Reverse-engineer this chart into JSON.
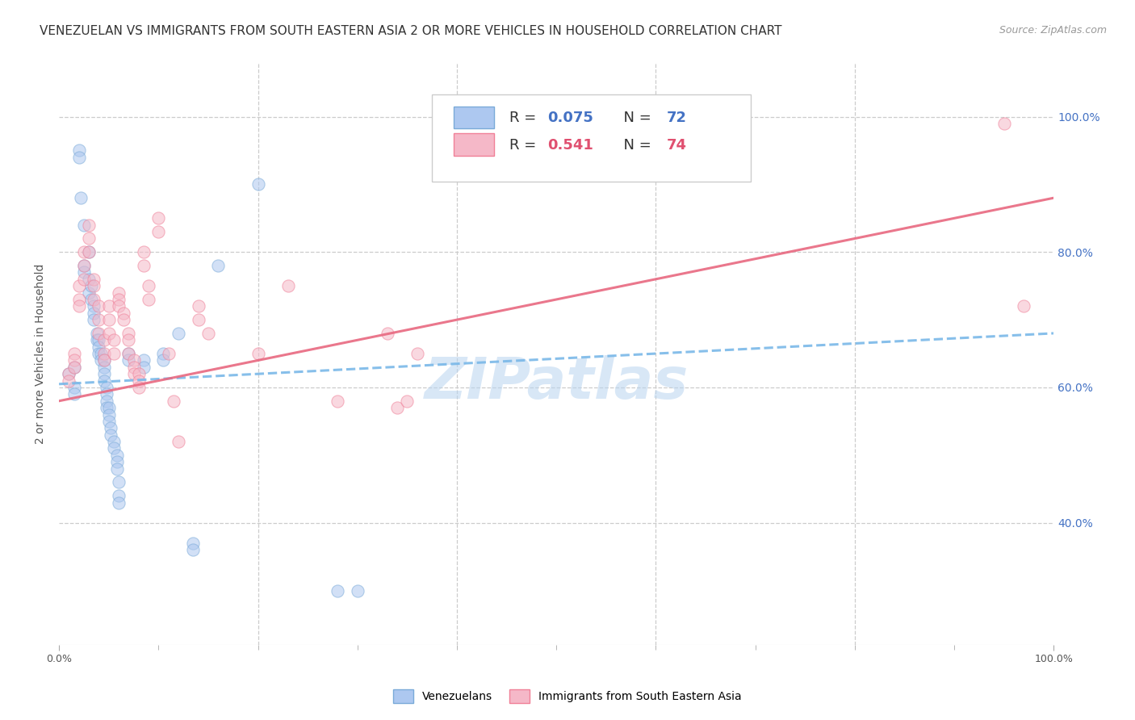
{
  "title": "VENEZUELAN VS IMMIGRANTS FROM SOUTH EASTERN ASIA 2 OR MORE VEHICLES IN HOUSEHOLD CORRELATION CHART",
  "source": "Source: ZipAtlas.com",
  "ylabel": "2 or more Vehicles in Household",
  "bottom_legend": [
    "Venezuelans",
    "Immigrants from South Eastern Asia"
  ],
  "blue_scatter": [
    [
      1.0,
      62
    ],
    [
      1.5,
      60
    ],
    [
      1.5,
      59
    ],
    [
      1.5,
      63
    ],
    [
      2.0,
      95
    ],
    [
      2.0,
      94
    ],
    [
      2.2,
      88
    ],
    [
      2.5,
      84
    ],
    [
      2.5,
      78
    ],
    [
      2.5,
      77
    ],
    [
      3.0,
      80
    ],
    [
      3.0,
      76
    ],
    [
      3.0,
      74
    ],
    [
      3.2,
      75
    ],
    [
      3.2,
      73
    ],
    [
      3.5,
      72
    ],
    [
      3.5,
      71
    ],
    [
      3.5,
      70
    ],
    [
      3.8,
      68
    ],
    [
      3.8,
      67
    ],
    [
      4.0,
      67
    ],
    [
      4.0,
      66
    ],
    [
      4.0,
      65
    ],
    [
      4.2,
      65
    ],
    [
      4.2,
      64
    ],
    [
      4.5,
      64
    ],
    [
      4.5,
      63
    ],
    [
      4.5,
      62
    ],
    [
      4.5,
      61
    ],
    [
      4.8,
      60
    ],
    [
      4.8,
      59
    ],
    [
      4.8,
      58
    ],
    [
      4.8,
      57
    ],
    [
      5.0,
      57
    ],
    [
      5.0,
      56
    ],
    [
      5.0,
      55
    ],
    [
      5.2,
      54
    ],
    [
      5.2,
      53
    ],
    [
      5.5,
      52
    ],
    [
      5.5,
      51
    ],
    [
      5.8,
      50
    ],
    [
      5.8,
      49
    ],
    [
      5.8,
      48
    ],
    [
      6.0,
      46
    ],
    [
      6.0,
      44
    ],
    [
      6.0,
      43
    ],
    [
      7.0,
      65
    ],
    [
      7.0,
      64
    ],
    [
      8.5,
      64
    ],
    [
      8.5,
      63
    ],
    [
      10.5,
      65
    ],
    [
      10.5,
      64
    ],
    [
      12.0,
      68
    ],
    [
      13.5,
      37
    ],
    [
      13.5,
      36
    ],
    [
      16.0,
      78
    ],
    [
      20.0,
      90
    ],
    [
      28.0,
      30
    ],
    [
      30.0,
      30
    ]
  ],
  "pink_scatter": [
    [
      1.0,
      62
    ],
    [
      1.0,
      61
    ],
    [
      1.5,
      65
    ],
    [
      1.5,
      64
    ],
    [
      1.5,
      63
    ],
    [
      2.0,
      75
    ],
    [
      2.0,
      73
    ],
    [
      2.0,
      72
    ],
    [
      2.5,
      80
    ],
    [
      2.5,
      78
    ],
    [
      2.5,
      76
    ],
    [
      3.0,
      84
    ],
    [
      3.0,
      82
    ],
    [
      3.0,
      80
    ],
    [
      3.5,
      76
    ],
    [
      3.5,
      75
    ],
    [
      3.5,
      73
    ],
    [
      4.0,
      72
    ],
    [
      4.0,
      70
    ],
    [
      4.0,
      68
    ],
    [
      4.5,
      67
    ],
    [
      4.5,
      65
    ],
    [
      4.5,
      64
    ],
    [
      5.0,
      72
    ],
    [
      5.0,
      70
    ],
    [
      5.0,
      68
    ],
    [
      5.5,
      67
    ],
    [
      5.5,
      65
    ],
    [
      6.0,
      74
    ],
    [
      6.0,
      73
    ],
    [
      6.0,
      72
    ],
    [
      6.5,
      71
    ],
    [
      6.5,
      70
    ],
    [
      7.0,
      68
    ],
    [
      7.0,
      67
    ],
    [
      7.0,
      65
    ],
    [
      7.5,
      64
    ],
    [
      7.5,
      63
    ],
    [
      7.5,
      62
    ],
    [
      8.0,
      62
    ],
    [
      8.0,
      61
    ],
    [
      8.0,
      60
    ],
    [
      8.5,
      80
    ],
    [
      8.5,
      78
    ],
    [
      9.0,
      75
    ],
    [
      9.0,
      73
    ],
    [
      10.0,
      85
    ],
    [
      10.0,
      83
    ],
    [
      11.0,
      65
    ],
    [
      11.5,
      58
    ],
    [
      14.0,
      72
    ],
    [
      14.0,
      70
    ],
    [
      15.0,
      68
    ],
    [
      20.0,
      65
    ],
    [
      23.0,
      75
    ],
    [
      28.0,
      58
    ],
    [
      33.0,
      68
    ],
    [
      34.0,
      57
    ],
    [
      35.0,
      58
    ],
    [
      36.0,
      65
    ],
    [
      12.0,
      52
    ],
    [
      95.0,
      99
    ],
    [
      97.0,
      72
    ]
  ],
  "scatter_size": 120,
  "scatter_alpha": 0.55,
  "blue_dot_face": "#adc8f0",
  "blue_dot_edge": "#7aaad8",
  "pink_dot_face": "#f5b8c8",
  "pink_dot_edge": "#f08098",
  "line_blue_color": "#7ab8e8",
  "line_pink_color": "#e86880",
  "background": "#ffffff",
  "grid_color": "#cccccc",
  "watermark": "ZIPatlas",
  "watermark_color": "#b8d4f0",
  "title_fontsize": 11,
  "source_fontsize": 9,
  "axis_label_fontsize": 10,
  "tick_fontsize": 9,
  "right_tick_color": "#4472c4",
  "blue_legend_R": "0.075",
  "blue_legend_N": "72",
  "pink_legend_R": "0.541",
  "pink_legend_N": "74",
  "legend_R_color": "#4472c4",
  "pink_R_color": "#e05070",
  "xlim": [
    0,
    100
  ],
  "ylim": [
    22,
    108
  ],
  "x_tick_vals": [
    0,
    100
  ],
  "x_tick_labels": [
    "0.0%",
    "100.0%"
  ],
  "y_tick_vals": [
    40,
    60,
    80,
    100
  ],
  "y_tick_labels_right": [
    "40.0%",
    "60.0%",
    "80.0%",
    "100.0%"
  ],
  "blue_line_x": [
    0,
    100
  ],
  "blue_line_y": [
    60.5,
    68.0
  ],
  "pink_line_x": [
    0,
    100
  ],
  "pink_line_y": [
    58.0,
    88.0
  ]
}
